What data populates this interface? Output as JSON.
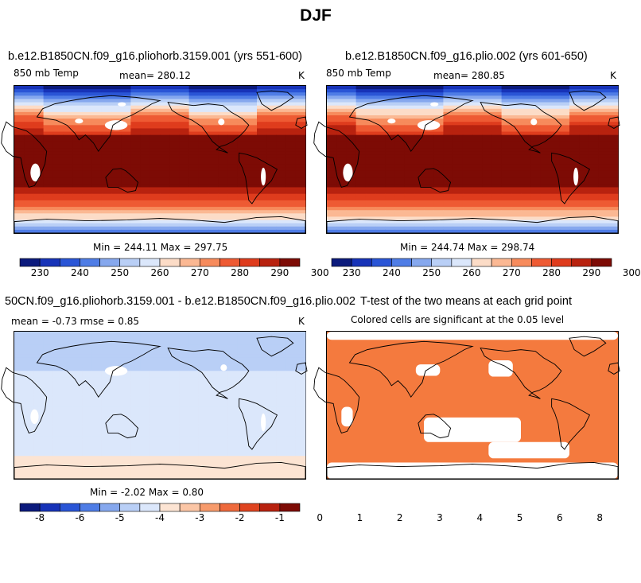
{
  "title": "DJF",
  "colors": {
    "temp_fill": [
      "#0b1a7c",
      "#1733b8",
      "#2a55d6",
      "#4f7de6",
      "#86a8ee",
      "#b9cff6",
      "#dbe7fb",
      "#fcdcc7",
      "#fbb893",
      "#f78b5c",
      "#ee5a33",
      "#df3c1d",
      "#b8220f",
      "#7d0b05"
    ],
    "diff_fill": [
      "#0b1a7c",
      "#1733b8",
      "#2a55d6",
      "#4f7de6",
      "#86a8ee",
      "#b9cff6",
      "#dbe7fb",
      "#fce4d3",
      "#fbc6a6",
      "#f79b6c",
      "#ee6a3d",
      "#df4420",
      "#b8220f",
      "#7d0b05"
    ],
    "ttest_fill": "#f47a3e",
    "land_white": "#ffffff",
    "coast": "#000000"
  },
  "panels": [
    {
      "title": "b.e12.B1850CN.f09_g16.pliohorb.3159.001 (yrs 551-600)",
      "left_label": "850 mb Temp",
      "center_label": "mean= 280.12",
      "right_label": "K",
      "minmax": "Min = 244.11  Max = 297.75",
      "colorbar_ticks": [
        "230",
        "240",
        "250",
        "260",
        "270",
        "280",
        "290",
        "300"
      ]
    },
    {
      "title": "b.e12.B1850CN.f09_g16.plio.002 (yrs 601-650)",
      "left_label": "850 mb Temp",
      "center_label": "mean= 280.85",
      "right_label": "K",
      "minmax": "Min = 244.74  Max = 298.74",
      "colorbar_ticks": [
        "230",
        "240",
        "250",
        "260",
        "270",
        "280",
        "290",
        "300"
      ]
    },
    {
      "title": "50CN.f09_g16.pliohorb.3159.001 - b.e12.B1850CN.f09_g16.plio.002",
      "left_label": "mean =   -0.73     rmse =    0.85",
      "right_label": "K",
      "minmax": "Min =   -2.02  Max =    0.80",
      "colorbar_ticks": [
        "-8",
        "-6",
        "-5",
        "-4",
        "-3",
        "-2",
        "-1",
        "0",
        "1",
        "2",
        "3",
        "4",
        "5",
        "6",
        "8"
      ]
    },
    {
      "title": "T-test of the two means at each grid point",
      "subtitle": "Colored cells are significant at the 0.05 level"
    }
  ],
  "chart_data": [
    {
      "type": "heatmap",
      "title": "b.e12.B1850CN.f09_g16.pliohorb.3159.001 (yrs 551-600)",
      "field": "850 mb Temp",
      "units": "K",
      "mean": 280.12,
      "min": 244.11,
      "max": 297.75,
      "contour_levels": [
        230,
        235,
        240,
        245,
        250,
        255,
        260,
        265,
        270,
        275,
        280,
        285,
        290,
        295,
        300
      ]
    },
    {
      "type": "heatmap",
      "title": "b.e12.B1850CN.f09_g16.plio.002 (yrs 601-650)",
      "field": "850 mb Temp",
      "units": "K",
      "mean": 280.85,
      "min": 244.74,
      "max": 298.74,
      "contour_levels": [
        230,
        235,
        240,
        245,
        250,
        255,
        260,
        265,
        270,
        275,
        280,
        285,
        290,
        295,
        300
      ]
    },
    {
      "type": "heatmap",
      "title": "50CN.f09_g16.pliohorb.3159.001 - b.e12.B1850CN.f09_g16.plio.002",
      "units": "K",
      "mean": -0.73,
      "rmse": 0.85,
      "min": -2.02,
      "max": 0.8,
      "contour_levels": [
        -8,
        -6,
        -5,
        -4,
        -3,
        -2,
        -1,
        0,
        1,
        2,
        3,
        4,
        5,
        6,
        8
      ]
    },
    {
      "type": "heatmap",
      "title": "T-test of the two means at each grid point",
      "subtitle": "Colored cells are significant at the 0.05 level"
    }
  ]
}
